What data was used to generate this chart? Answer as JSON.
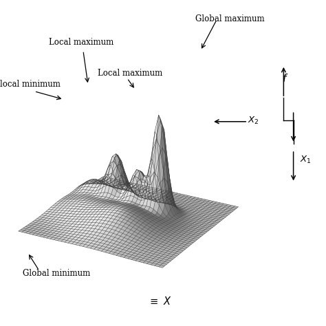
{
  "background_color": "#ffffff",
  "wireframe_color": "#3a3a3a",
  "surface_color": "#f0f0f0",
  "figsize": [
    4.74,
    4.74
  ],
  "dpi": 100,
  "elev": 22,
  "azim": -60,
  "n_grid": 40,
  "zlim_max": 3.5,
  "annotations": {
    "global_max": "Global maximum",
    "local_max_1": "Local maximum",
    "local_max_2": "Local maximum",
    "local_min": "local minimum",
    "global_min": "Global minimum"
  }
}
